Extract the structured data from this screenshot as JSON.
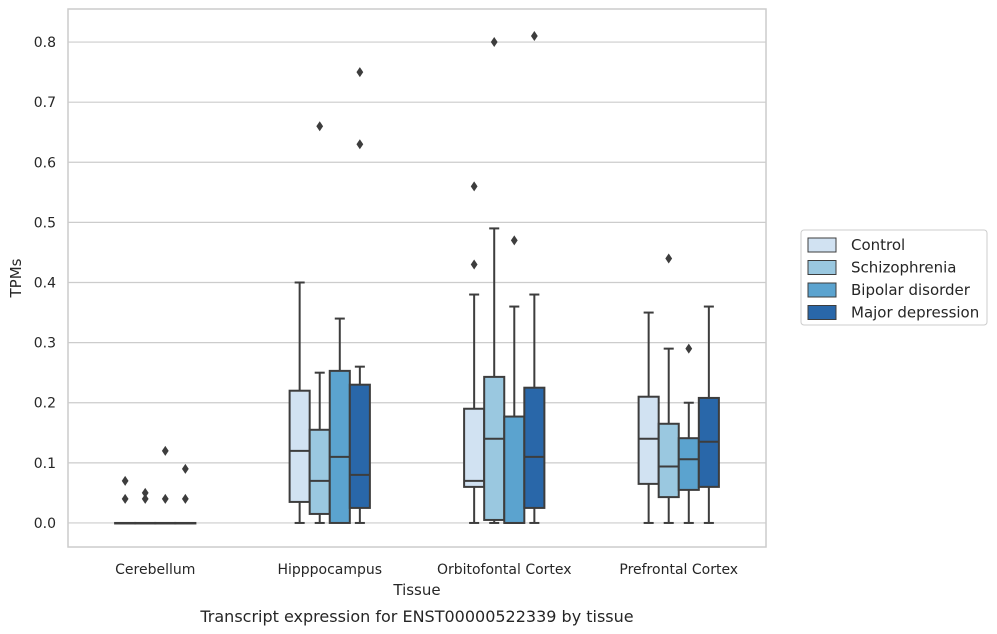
{
  "chart_data": {
    "type": "box",
    "xlabel": "Tissue",
    "ylabel": "TPMs",
    "caption": "Transcript expression for ENST00000522339 by tissue",
    "ylim": [
      -0.04,
      0.855
    ],
    "yticks": [
      "0.0",
      "0.1",
      "0.2",
      "0.3",
      "0.4",
      "0.5",
      "0.6",
      "0.7",
      "0.8"
    ],
    "grid": "horizontal",
    "legend_position": "right",
    "categories": [
      "Cerebellum",
      "Hipppocampus",
      "Orbitofontal Cortex",
      "Prefrontal Cortex"
    ],
    "series": [
      {
        "name": "Control",
        "color": "#d1e2f2",
        "boxes": [
          {
            "min": 0,
            "q1": 0,
            "median": 0,
            "q3": 0,
            "max": 0,
            "outliers": [
              0.04,
              0.07
            ]
          },
          {
            "min": 0,
            "q1": 0.035,
            "median": 0.12,
            "q3": 0.22,
            "max": 0.4,
            "outliers": []
          },
          {
            "min": 0,
            "q1": 0.06,
            "median": 0.07,
            "q3": 0.19,
            "max": 0.38,
            "outliers": [
              0.43,
              0.56
            ]
          },
          {
            "min": 0,
            "q1": 0.065,
            "median": 0.14,
            "q3": 0.21,
            "max": 0.35,
            "outliers": []
          }
        ]
      },
      {
        "name": "Schizophrenia",
        "color": "#9ac8e0",
        "boxes": [
          {
            "min": 0,
            "q1": 0,
            "median": 0,
            "q3": 0,
            "max": 0,
            "outliers": [
              0.04,
              0.05
            ]
          },
          {
            "min": 0,
            "q1": 0.015,
            "median": 0.07,
            "q3": 0.155,
            "max": 0.25,
            "outliers": [
              0.66
            ]
          },
          {
            "min": 0,
            "q1": 0.005,
            "median": 0.14,
            "q3": 0.243,
            "max": 0.49,
            "outliers": [
              0.8
            ]
          },
          {
            "min": 0,
            "q1": 0.043,
            "median": 0.094,
            "q3": 0.165,
            "max": 0.29,
            "outliers": [
              0.44
            ]
          }
        ]
      },
      {
        "name": "Bipolar disorder",
        "color": "#5ba3cf",
        "boxes": [
          {
            "min": 0,
            "q1": 0,
            "median": 0,
            "q3": 0,
            "max": 0,
            "outliers": [
              0.04,
              0.12
            ]
          },
          {
            "min": 0,
            "q1": 0,
            "median": 0.11,
            "q3": 0.253,
            "max": 0.34,
            "outliers": []
          },
          {
            "min": 0,
            "q1": 0,
            "median": 0,
            "q3": 0.177,
            "max": 0.36,
            "outliers": [
              0.47
            ]
          },
          {
            "min": 0,
            "q1": 0.055,
            "median": 0.106,
            "q3": 0.141,
            "max": 0.2,
            "outliers": [
              0.29
            ]
          }
        ]
      },
      {
        "name": "Major depression",
        "color": "#2967a9",
        "boxes": [
          {
            "min": 0,
            "q1": 0,
            "median": 0,
            "q3": 0,
            "max": 0,
            "outliers": [
              0.04,
              0.09
            ]
          },
          {
            "min": 0,
            "q1": 0.025,
            "median": 0.08,
            "q3": 0.23,
            "max": 0.26,
            "outliers": [
              0.63,
              0.75
            ]
          },
          {
            "min": 0,
            "q1": 0.025,
            "median": 0.11,
            "q3": 0.225,
            "max": 0.38,
            "outliers": [
              0.81
            ]
          },
          {
            "min": 0,
            "q1": 0.06,
            "median": 0.135,
            "q3": 0.208,
            "max": 0.36,
            "outliers": []
          }
        ]
      }
    ]
  }
}
